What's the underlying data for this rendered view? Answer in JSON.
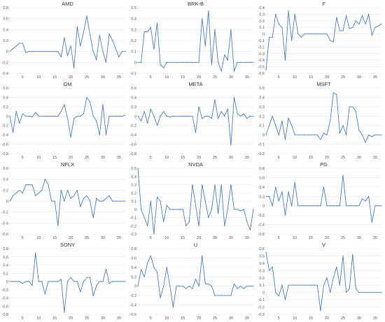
{
  "chart_data": [
    {
      "type": "line",
      "title": "AMD",
      "ylim": [
        -0.4,
        0.8
      ],
      "yticks": [
        -0.4,
        -0.2,
        0,
        0.2,
        0.4,
        0.6,
        0.8
      ],
      "xticks": [
        5,
        10,
        15,
        20,
        25,
        30,
        35
      ],
      "x": [
        1,
        2,
        3,
        4,
        5,
        6,
        7,
        8,
        9,
        10,
        11,
        12,
        13,
        14,
        15,
        16,
        17,
        18,
        19,
        20,
        21,
        22,
        23,
        24,
        25,
        26,
        27,
        28,
        29,
        30,
        31,
        32,
        33,
        34,
        35,
        36,
        37
      ],
      "values": [
        0.0,
        0.05,
        0.1,
        0.15,
        0.15,
        -0.02,
        0.0,
        0.0,
        0.0,
        0.0,
        0.0,
        0.0,
        0.0,
        0.0,
        0.0,
        0.0,
        -0.1,
        0.25,
        -0.08,
        0.1,
        -0.3,
        0.45,
        0.1,
        0.35,
        0.65,
        0.3,
        0.0,
        -0.15,
        0.3,
        0.0,
        -0.2,
        0.32,
        0.2,
        0.05,
        -0.1,
        0.0,
        0.0
      ]
    },
    {
      "type": "line",
      "title": "BRK-B",
      "ylim": [
        -0.1,
        0.5
      ],
      "yticks": [
        -0.1,
        0,
        0.1,
        0.2,
        0.3,
        0.4,
        0.5
      ],
      "xticks": [
        5,
        10,
        15,
        20,
        25,
        30,
        35
      ],
      "x": [
        1,
        2,
        3,
        4,
        5,
        6,
        7,
        8,
        9,
        10,
        11,
        12,
        13,
        14,
        15,
        16,
        17,
        18,
        19,
        20,
        21,
        22,
        23,
        24,
        25,
        26,
        27,
        28,
        29,
        30,
        31,
        32,
        33,
        34,
        35,
        36,
        37
      ],
      "values": [
        0.0,
        0.0,
        0.28,
        0.28,
        0.32,
        0.12,
        0.36,
        -0.02,
        -0.05,
        0.0,
        0.0,
        0.0,
        0.0,
        0.0,
        0.0,
        0.0,
        0.0,
        0.0,
        0.0,
        0.0,
        0.4,
        0.15,
        0.47,
        -0.02,
        0.3,
        0.0,
        -0.08,
        0.07,
        0.02,
        0.3,
        -0.08,
        0.0,
        0.0,
        0.0,
        0.0,
        0.0,
        0.0
      ]
    },
    {
      "type": "line",
      "title": "F",
      "ylim": [
        -0.6,
        0.4
      ],
      "yticks": [
        -0.6,
        -0.5,
        -0.4,
        -0.3,
        -0.2,
        -0.1,
        0,
        0.1,
        0.2,
        0.3,
        0.4
      ],
      "xticks": [
        5,
        10,
        15,
        20,
        25,
        30,
        35
      ],
      "x": [
        1,
        2,
        3,
        4,
        5,
        6,
        7,
        8,
        9,
        10,
        11,
        12,
        13,
        14,
        15,
        16,
        17,
        18,
        19,
        20,
        21,
        22,
        23,
        24,
        25,
        26,
        27,
        28,
        29,
        30,
        31,
        32,
        33,
        34,
        35,
        36,
        37
      ],
      "values": [
        -0.55,
        -0.05,
        -0.05,
        0.3,
        0.15,
        0.1,
        -0.4,
        0.35,
        -0.1,
        0.3,
        0.0,
        -0.05,
        0.0,
        0.0,
        0.0,
        0.0,
        0.0,
        0.0,
        0.0,
        0.0,
        -0.1,
        -0.12,
        0.25,
        0.05,
        0.05,
        0.28,
        0.08,
        0.1,
        0.2,
        0.15,
        0.28,
        0.15,
        0.3,
        -0.02,
        0.1,
        0.12,
        0.15
      ]
    },
    {
      "type": "line",
      "title": "GM",
      "ylim": [
        -0.8,
        0.6
      ],
      "yticks": [
        -0.8,
        -0.6,
        -0.4,
        -0.2,
        0,
        0.2,
        0.4,
        0.6
      ],
      "xticks": [
        5,
        10,
        15,
        20,
        25,
        30,
        35
      ],
      "x": [
        1,
        2,
        3,
        4,
        5,
        6,
        7,
        8,
        9,
        10,
        11,
        12,
        13,
        14,
        15,
        16,
        17,
        18,
        19,
        20,
        21,
        22,
        23,
        24,
        25,
        26,
        27,
        28,
        29,
        30,
        31,
        32,
        33,
        34,
        35,
        36,
        37
      ],
      "values": [
        0.0,
        -0.35,
        0.1,
        -0.15,
        0.05,
        0.0,
        0.0,
        -0.02,
        0.08,
        0.0,
        0.0,
        0.0,
        0.0,
        0.0,
        0.0,
        0.0,
        0.1,
        0.25,
        -0.05,
        -0.45,
        -0.05,
        0.0,
        0.0,
        0.05,
        0.4,
        0.3,
        0.0,
        -0.1,
        -0.4,
        0.25,
        -0.4,
        0.0,
        0.0,
        0.0,
        0.0,
        0.0,
        0.02
      ]
    },
    {
      "type": "line",
      "title": "META",
      "ylim": [
        -0.8,
        0.6
      ],
      "yticks": [
        -0.8,
        -0.6,
        -0.4,
        -0.2,
        0,
        0.2,
        0.4,
        0.6
      ],
      "xticks": [
        5,
        10,
        15,
        20,
        25,
        30,
        35
      ],
      "x": [
        1,
        2,
        3,
        4,
        5,
        6,
        7,
        8,
        9,
        10,
        11,
        12,
        13,
        14,
        15,
        16,
        17,
        18,
        19,
        20,
        21,
        22,
        23,
        24,
        25,
        26,
        27,
        28,
        29,
        30,
        31,
        32,
        33,
        34,
        35,
        36,
        37
      ],
      "values": [
        0.0,
        -0.1,
        0.1,
        -0.15,
        0.15,
        0.0,
        -0.2,
        0.0,
        0.1,
        0.0,
        -0.02,
        0.0,
        0.0,
        0.0,
        0.0,
        0.0,
        0.0,
        0.0,
        -0.35,
        0.2,
        -0.05,
        0.0,
        0.0,
        -0.05,
        0.35,
        -0.05,
        0.1,
        0.0,
        0.15,
        -0.62,
        0.4,
        0.05,
        0.0,
        0.05,
        -0.05,
        0.0,
        0.0
      ]
    },
    {
      "type": "line",
      "title": "MSFT",
      "ylim": [
        -0.2,
        0.5
      ],
      "yticks": [
        -0.2,
        -0.1,
        0,
        0.1,
        0.2,
        0.3,
        0.4,
        0.5
      ],
      "xticks": [
        5,
        10,
        15,
        20,
        25,
        30,
        35
      ],
      "x": [
        1,
        2,
        3,
        4,
        5,
        6,
        7,
        8,
        9,
        10,
        11,
        12,
        13,
        14,
        15,
        16,
        17,
        18,
        19,
        20,
        21,
        22,
        23,
        24,
        25,
        26,
        27,
        28,
        29,
        30,
        31,
        32,
        33,
        34,
        35,
        36,
        37
      ],
      "values": [
        0.0,
        0.1,
        0.2,
        0.1,
        0.0,
        0.15,
        -0.05,
        0.18,
        0.1,
        0.0,
        0.0,
        0.0,
        0.0,
        0.0,
        0.0,
        0.0,
        0.0,
        -0.05,
        0.02,
        0.0,
        0.15,
        0.45,
        0.43,
        0.02,
        0.1,
        0.0,
        0.3,
        0.3,
        0.25,
        0.05,
        0.0,
        -0.08,
        0.0,
        -0.02,
        0.0,
        0.0,
        0.0
      ]
    },
    {
      "type": "line",
      "title": "NFLX",
      "ylim": [
        -0.6,
        0.6
      ],
      "yticks": [
        -0.6,
        -0.4,
        -0.2,
        0,
        0.2,
        0.4,
        0.6
      ],
      "xticks": [
        5,
        10,
        15,
        20,
        25,
        30,
        35
      ],
      "x": [
        1,
        2,
        3,
        4,
        5,
        6,
        7,
        8,
        9,
        10,
        11,
        12,
        13,
        14,
        15,
        16,
        17,
        18,
        19,
        20,
        21,
        22,
        23,
        24,
        25,
        26,
        27,
        28,
        29,
        30,
        31,
        32,
        33,
        34,
        35,
        36,
        37
      ],
      "values": [
        0.0,
        0.1,
        0.15,
        0.2,
        0.15,
        0.3,
        0.3,
        0.3,
        0.1,
        0.15,
        0.2,
        0.4,
        0.3,
        0.0,
        0.0,
        -0.45,
        0.2,
        0.0,
        0.2,
        0.05,
        0.1,
        0.2,
        -0.1,
        0.05,
        0.1,
        0.0,
        -0.3,
        0.05,
        0.0,
        0.0,
        0.05,
        0.1,
        0.0,
        0.0,
        0.0,
        0.0,
        0.0
      ]
    },
    {
      "type": "line",
      "title": "NVDA",
      "ylim": [
        -0.3,
        0.5
      ],
      "yticks": [
        -0.3,
        -0.2,
        -0.1,
        0,
        0.1,
        0.2,
        0.3,
        0.4,
        0.5
      ],
      "xticks": [
        5,
        10,
        15,
        20,
        25,
        30,
        35
      ],
      "x": [
        1,
        2,
        3,
        4,
        5,
        6,
        7,
        8,
        9,
        10,
        11,
        12,
        13,
        14,
        15,
        16,
        17,
        18,
        19,
        20,
        21,
        22,
        23,
        24,
        25,
        26,
        27,
        28,
        29,
        30,
        31,
        32,
        33,
        34,
        35,
        36,
        37
      ],
      "values": [
        0.5,
        0.0,
        -0.1,
        -0.2,
        0.1,
        -0.3,
        0.15,
        0.1,
        -0.15,
        0.05,
        0.0,
        0.0,
        0.0,
        0.0,
        0.0,
        -0.2,
        -0.15,
        0.3,
        0.05,
        -0.2,
        0.3,
        0.1,
        -0.1,
        0.0,
        0.3,
        -0.05,
        0.3,
        -0.2,
        0.0,
        0.3,
        0.0,
        0.0,
        -0.02,
        0.0,
        -0.15,
        -0.25,
        0.0
      ]
    },
    {
      "type": "line",
      "title": "PG",
      "ylim": [
        -0.6,
        0.8
      ],
      "yticks": [
        -0.6,
        -0.4,
        -0.2,
        0,
        0.2,
        0.4,
        0.6,
        0.8
      ],
      "xticks": [
        5,
        10,
        15,
        20,
        25,
        30,
        35
      ],
      "x": [
        1,
        2,
        3,
        4,
        5,
        6,
        7,
        8,
        9,
        10,
        11,
        12,
        13,
        14,
        15,
        16,
        17,
        18,
        19,
        20,
        21,
        22,
        23,
        24,
        25,
        26,
        27,
        28,
        29,
        30,
        31,
        32,
        33,
        34,
        35,
        36,
        37
      ],
      "values": [
        0.2,
        0.2,
        0.0,
        0.4,
        0.1,
        0.3,
        -0.2,
        0.3,
        0.0,
        0.5,
        0.0,
        0.0,
        0.0,
        0.0,
        0.0,
        0.0,
        0.0,
        0.0,
        0.4,
        0.0,
        0.0,
        0.0,
        0.0,
        0.0,
        0.65,
        0.0,
        0.0,
        0.0,
        0.0,
        0.0,
        0.15,
        0.1,
        0.2,
        -0.35,
        0.0,
        0.0,
        0.0
      ]
    },
    {
      "type": "line",
      "title": "SONY",
      "ylim": [
        -0.8,
        0.8
      ],
      "yticks": [
        -0.8,
        -0.6,
        -0.4,
        -0.2,
        0,
        0.2,
        0.4,
        0.6,
        0.8
      ],
      "xticks": [
        5,
        10,
        15,
        20,
        25,
        30,
        35
      ],
      "x": [
        1,
        2,
        3,
        4,
        5,
        6,
        7,
        8,
        9,
        10,
        11,
        12,
        13,
        14,
        15,
        16,
        17,
        18,
        19,
        20,
        21,
        22,
        23,
        24,
        25,
        26,
        27,
        28,
        29,
        30,
        31,
        32,
        33,
        34,
        35,
        36,
        37
      ],
      "values": [
        0.0,
        0.0,
        0.0,
        0.0,
        -0.05,
        0.0,
        0.0,
        -0.1,
        0.7,
        0.0,
        0.0,
        -0.3,
        0.0,
        0.0,
        0.0,
        0.0,
        0.05,
        -0.75,
        0.0,
        0.1,
        0.0,
        0.0,
        -0.25,
        0.0,
        0.1,
        0.1,
        -0.35,
        -0.1,
        0.0,
        0.0,
        0.3,
        -0.05,
        0.0,
        0.0,
        0.0,
        0.0,
        0.0
      ]
    },
    {
      "type": "line",
      "title": "U",
      "ylim": [
        -0.6,
        0.8
      ],
      "yticks": [
        -0.6,
        -0.4,
        -0.2,
        0,
        0.2,
        0.4,
        0.6,
        0.8
      ],
      "xticks": [
        5,
        10,
        15,
        20,
        25,
        30,
        35
      ],
      "x": [
        1,
        2,
        3,
        4,
        5,
        6,
        7,
        8,
        9,
        10,
        11,
        12,
        13,
        14,
        15,
        16,
        17,
        18,
        19,
        20,
        21,
        22,
        23,
        24,
        25,
        26,
        27,
        28,
        29,
        30,
        31,
        32,
        33,
        34,
        35,
        36,
        37
      ],
      "values": [
        0.0,
        0.35,
        0.2,
        0.5,
        0.65,
        0.4,
        0.3,
        -0.25,
        0.0,
        0.4,
        0.0,
        -0.45,
        0.0,
        0.0,
        0.0,
        -0.05,
        0.0,
        -0.05,
        0.15,
        0.0,
        0.65,
        0.05,
        0.05,
        0.0,
        -0.2,
        -0.2,
        -0.2,
        -0.2,
        -0.2,
        -0.2,
        0.05,
        -0.05,
        0.0,
        -0.05,
        0.0,
        0.0,
        0.0
      ]
    },
    {
      "type": "line",
      "title": "V",
      "ylim": [
        -0.3,
        0.6
      ],
      "yticks": [
        -0.3,
        -0.2,
        -0.1,
        0,
        0.1,
        0.2,
        0.3,
        0.4,
        0.5,
        0.6
      ],
      "xticks": [
        5,
        10,
        15,
        20,
        25,
        30,
        35
      ],
      "x": [
        1,
        2,
        3,
        4,
        5,
        6,
        7,
        8,
        9,
        10,
        11,
        12,
        13,
        14,
        15,
        16,
        17,
        18,
        19,
        20,
        21,
        22,
        23,
        24,
        25,
        26,
        27,
        28,
        29,
        30,
        31,
        32,
        33,
        34,
        35,
        36,
        37
      ],
      "values": [
        0.55,
        0.3,
        0.35,
        0.0,
        -0.05,
        0.1,
        -0.1,
        0.1,
        0.1,
        0.1,
        0.1,
        0.1,
        0.1,
        0.1,
        0.1,
        0.1,
        0.1,
        -0.25,
        0.1,
        0.2,
        0.0,
        0.2,
        0.35,
        0.1,
        0.5,
        0.0,
        0.05,
        0.52,
        0.05,
        0.0,
        0.0,
        0.0,
        0.0,
        0.0,
        0.0,
        0.0,
        0.0
      ]
    }
  ]
}
